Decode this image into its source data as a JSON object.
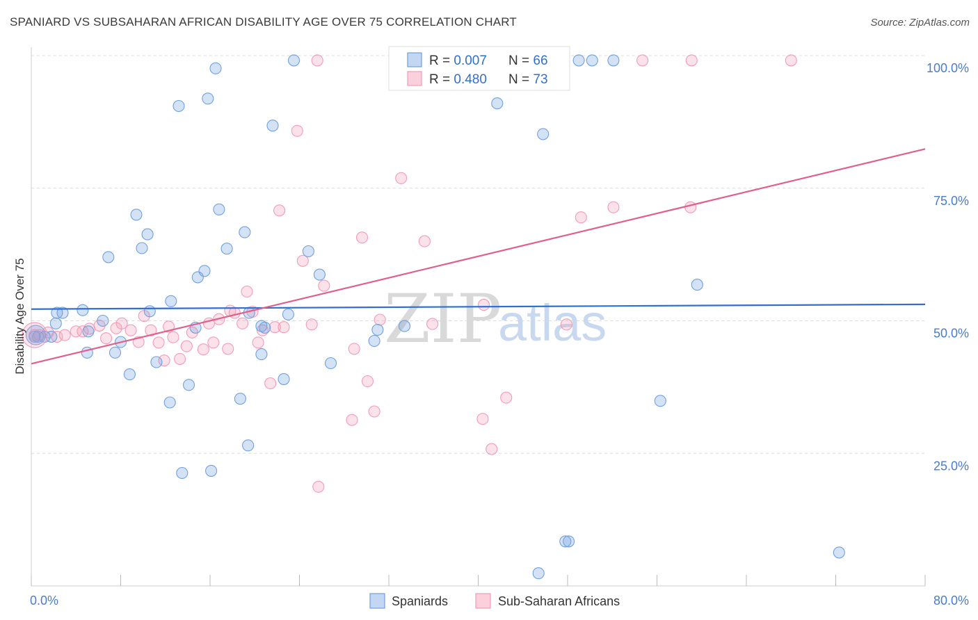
{
  "title": "SPANIARD VS SUBSAHARAN AFRICAN DISABILITY AGE OVER 75 CORRELATION CHART",
  "source": "Source: ZipAtlas.com",
  "watermark": {
    "zip": "ZIP",
    "atlas": "atlas"
  },
  "chart_data": {
    "type": "scatter",
    "ylabel": "Disability Age Over 75",
    "xlim": [
      0,
      80
    ],
    "ylim": [
      0,
      100
    ],
    "x_tick_labels": [
      "0.0%",
      "80.0%"
    ],
    "y_ticks": [
      25,
      50,
      75,
      100
    ],
    "y_tick_labels": [
      "25.0%",
      "50.0%",
      "75.0%",
      "100.0%"
    ],
    "grid": true,
    "legend_position": "top-center",
    "legend": [
      {
        "r_label": "R = ",
        "r_value": "0.007",
        "n_label": "N = ",
        "n_value": "66"
      },
      {
        "r_label": "R = ",
        "r_value": "0.480",
        "n_label": "N = ",
        "n_value": "73"
      }
    ],
    "series": [
      {
        "name": "Spaniards",
        "color": "#6fa0e0",
        "line_color": "#2f6fd0",
        "trend": [
          [
            0,
            52.2
          ],
          [
            80,
            53.1
          ]
        ],
        "points": [
          [
            0.3,
            47
          ],
          [
            0.6,
            47
          ],
          [
            1.2,
            47
          ],
          [
            1.8,
            47
          ],
          [
            2.2,
            49.5
          ],
          [
            2.8,
            51.5
          ],
          [
            2.3,
            51.5
          ],
          [
            4.6,
            52
          ],
          [
            5.1,
            48
          ],
          [
            6.4,
            50
          ],
          [
            5,
            44
          ],
          [
            7.5,
            44
          ],
          [
            8,
            46
          ],
          [
            8.8,
            39.9
          ],
          [
            6.9,
            62
          ],
          [
            9.4,
            70
          ],
          [
            9.9,
            63.7
          ],
          [
            10.6,
            51.8
          ],
          [
            10.4,
            66.3
          ],
          [
            11.2,
            42.2
          ],
          [
            12.4,
            34.6
          ],
          [
            12.5,
            53.7
          ],
          [
            13.2,
            90.5
          ],
          [
            13.5,
            21.3
          ],
          [
            14.1,
            37.9
          ],
          [
            14.7,
            48.7
          ],
          [
            14.9,
            58.2
          ],
          [
            15.5,
            59.4
          ],
          [
            15.8,
            91.9
          ],
          [
            16.1,
            21.7
          ],
          [
            16.5,
            97.6
          ],
          [
            16.8,
            71
          ],
          [
            17.5,
            63.6
          ],
          [
            18.7,
            35.3
          ],
          [
            19.1,
            66.7
          ],
          [
            19.4,
            26.5
          ],
          [
            19.5,
            51.5
          ],
          [
            20.6,
            49
          ],
          [
            20.6,
            43.7
          ],
          [
            20.9,
            48.7
          ],
          [
            21.6,
            86.8
          ],
          [
            22.6,
            39
          ],
          [
            23,
            51.2
          ],
          [
            23.5,
            99.1
          ],
          [
            24.8,
            63.1
          ],
          [
            25.8,
            58.7
          ],
          [
            26.8,
            42
          ],
          [
            30.7,
            46.2
          ],
          [
            31,
            48.3
          ],
          [
            33.4,
            49
          ],
          [
            41.7,
            91
          ],
          [
            45.4,
            2.4
          ],
          [
            45.8,
            85.2
          ],
          [
            47.8,
            8.4
          ],
          [
            48.1,
            8.4
          ],
          [
            49,
            99.1
          ],
          [
            50.2,
            99.1
          ],
          [
            52.1,
            99.1
          ],
          [
            56.3,
            34.9
          ],
          [
            59.6,
            56.8
          ],
          [
            72.3,
            6.3
          ]
        ]
      },
      {
        "name": "Sub-Saharan Africans",
        "color": "#f29cb6",
        "line_color": "#e0608a",
        "trend": [
          [
            0,
            41.9
          ],
          [
            80,
            82.4
          ]
        ],
        "points": [
          [
            0.3,
            47.3
          ],
          [
            0.7,
            47.3
          ],
          [
            1.5,
            47.8
          ],
          [
            2.3,
            47
          ],
          [
            3,
            47.3
          ],
          [
            4,
            48
          ],
          [
            4.6,
            48
          ],
          [
            5.2,
            48.5
          ],
          [
            6.1,
            49.1
          ],
          [
            6.7,
            46.7
          ],
          [
            7.6,
            48.6
          ],
          [
            8.1,
            49.5
          ],
          [
            8.9,
            48.2
          ],
          [
            9.6,
            46
          ],
          [
            10.1,
            50.9
          ],
          [
            10.7,
            48.2
          ],
          [
            11.4,
            45.9
          ],
          [
            11.9,
            42.5
          ],
          [
            12.3,
            48.9
          ],
          [
            12.7,
            46.9
          ],
          [
            13.3,
            42.8
          ],
          [
            13.9,
            45.2
          ],
          [
            14.4,
            47.8
          ],
          [
            15.4,
            44.6
          ],
          [
            15.9,
            49.5
          ],
          [
            16.3,
            45.9
          ],
          [
            16.8,
            50.3
          ],
          [
            17.6,
            44.7
          ],
          [
            17.8,
            51.9
          ],
          [
            18.2,
            51.5
          ],
          [
            18.9,
            49.5
          ],
          [
            19.3,
            55.5
          ],
          [
            19.8,
            51.7
          ],
          [
            20.3,
            45.9
          ],
          [
            20.7,
            48.2
          ],
          [
            21.4,
            38.2
          ],
          [
            21.8,
            48.8
          ],
          [
            22.2,
            70.8
          ],
          [
            22.6,
            48.8
          ],
          [
            23.8,
            85.8
          ],
          [
            24.3,
            61.3
          ],
          [
            25.1,
            49.3
          ],
          [
            25.6,
            99.1
          ],
          [
            25.7,
            18.7
          ],
          [
            26.2,
            56.6
          ],
          [
            28.7,
            31.3
          ],
          [
            28.9,
            44.7
          ],
          [
            29.6,
            65.7
          ],
          [
            30.1,
            38.6
          ],
          [
            30.7,
            32.9
          ],
          [
            31.2,
            50.2
          ],
          [
            32.7,
            99.1
          ],
          [
            33.1,
            76.9
          ],
          [
            35.2,
            65
          ],
          [
            35.9,
            49.4
          ],
          [
            40.4,
            31.5
          ],
          [
            40.5,
            53
          ],
          [
            41.2,
            25.8
          ],
          [
            42.5,
            35.5
          ],
          [
            47.9,
            49.3
          ],
          [
            49.2,
            69.5
          ],
          [
            52.1,
            71.4
          ],
          [
            54.7,
            99.1
          ],
          [
            59,
            71.4
          ],
          [
            59.1,
            99.1
          ],
          [
            68,
            99.1
          ]
        ]
      }
    ]
  },
  "bottom_legend": [
    {
      "label": "Spaniards",
      "color": "#6fa0e0"
    },
    {
      "label": "Sub-Saharan Africans",
      "color": "#f29cb6"
    }
  ]
}
